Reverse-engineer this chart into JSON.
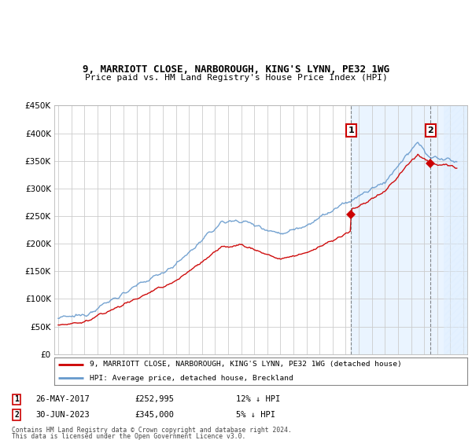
{
  "title": "9, MARRIOTT CLOSE, NARBOROUGH, KING'S LYNN, PE32 1WG",
  "subtitle": "Price paid vs. HM Land Registry's House Price Index (HPI)",
  "legend_line1": "9, MARRIOTT CLOSE, NARBOROUGH, KING'S LYNN, PE32 1WG (detached house)",
  "legend_line2": "HPI: Average price, detached house, Breckland",
  "annotation1_date": "26-MAY-2017",
  "annotation1_price": "£252,995",
  "annotation1_hpi": "12% ↓ HPI",
  "annotation2_date": "30-JUN-2023",
  "annotation2_price": "£345,000",
  "annotation2_hpi": "5% ↓ HPI",
  "footer1": "Contains HM Land Registry data © Crown copyright and database right 2024.",
  "footer2": "This data is licensed under the Open Government Licence v3.0.",
  "hpi_color": "#6699cc",
  "price_color": "#cc0000",
  "fig_bg_color": "#ffffff",
  "plot_bg_color": "#ffffff",
  "shade_color": "#ddeeff",
  "ylim": [
    0,
    450000
  ],
  "yticks": [
    0,
    50000,
    100000,
    150000,
    200000,
    250000,
    300000,
    350000,
    400000,
    450000
  ],
  "sale1_year": 2017.42,
  "sale1_price": 252995,
  "sale2_year": 2023.5,
  "sale2_price": 345000,
  "xmin": 1994.7,
  "xmax": 2026.3,
  "hatch_start": 2024.5
}
